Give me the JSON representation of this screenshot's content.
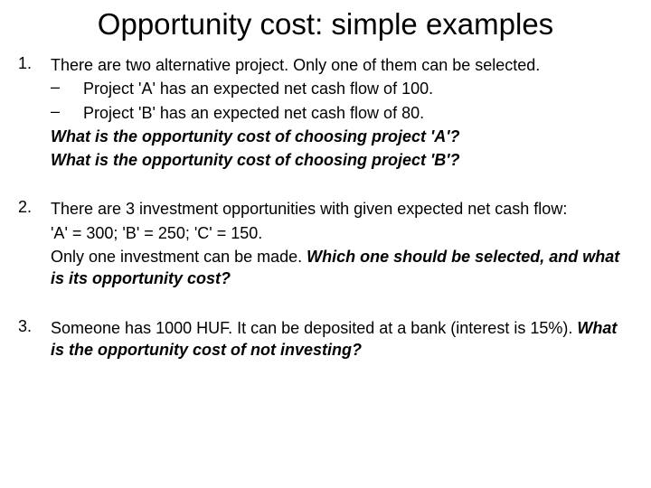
{
  "title": "Opportunity cost: simple examples",
  "items": [
    {
      "num": "1.",
      "intro": "There are two alternative project. Only one of them can be selected.",
      "subs": [
        {
          "dash": "–",
          "text": "Project 'A' has an expected net cash flow of 100."
        },
        {
          "dash": "–",
          "text": "Project 'B' has an expected net cash flow of 80."
        }
      ],
      "questions": [
        "What is the opportunity cost of choosing project 'A'?",
        "What is the opportunity cost of choosing project 'B'?"
      ]
    },
    {
      "num": "2.",
      "intro": "There are 3 investment opportunities with given expected net cash flow:",
      "line2": "'A' = 300; 'B' = 250; 'C' = 150.",
      "line3_plain": "Only one investment can be made. ",
      "line3_bold": "Which one should be selected, and what is its opportunity cost?"
    },
    {
      "num": "3.",
      "intro_plain": "Someone has 1000 HUF. It can be deposited at a bank (interest is 15%). ",
      "intro_bold": "What is the opportunity cost of not investing?"
    }
  ],
  "colors": {
    "background": "#ffffff",
    "text": "#000000"
  },
  "typography": {
    "title_fontsize": 33,
    "body_fontsize": 18,
    "font_family": "Arial"
  }
}
